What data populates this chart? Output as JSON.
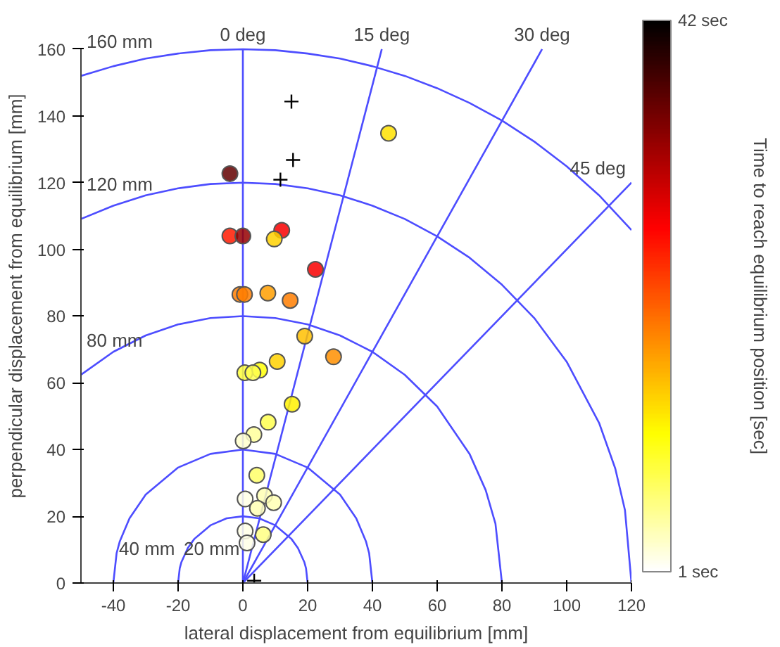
{
  "chart_data": {
    "type": "scatter",
    "xlabel": "lateral displacement from equilibrium [mm]",
    "ylabel": "perpendicular displacement from equilibrium [mm]",
    "clabel": "Time to reach equilibrium position [sec]",
    "xlim": [
      -50,
      120
    ],
    "ylim": [
      0,
      160
    ],
    "xticks": [
      -40,
      -20,
      0,
      20,
      40,
      60,
      80,
      100,
      120
    ],
    "yticks": [
      0,
      20,
      40,
      60,
      80,
      100,
      120,
      140,
      160
    ],
    "grid": false,
    "clim": [
      1,
      42
    ],
    "cticks": [
      {
        "value": 1,
        "label": "1 sec"
      },
      {
        "value": 42,
        "label": "42 sec"
      }
    ],
    "series": [
      {
        "type": "line",
        "name": "160 mm",
        "color": "#4d4dff",
        "x": [
          -50,
          -40,
          -30,
          -20,
          -10,
          0,
          10,
          20,
          30,
          40,
          50,
          60,
          70,
          80,
          90,
          100,
          110,
          120
        ],
        "values": [
          152.0,
          154.9,
          157.2,
          158.7,
          159.7,
          160,
          159.7,
          158.7,
          157.2,
          154.9,
          152.0,
          148.3,
          143.9,
          138.6,
          132.3,
          124.9,
          116.2,
          105.8
        ]
      },
      {
        "type": "line",
        "name": "120 mm",
        "color": "#4d4dff",
        "x": [
          -50,
          -40,
          -30,
          -20,
          -10,
          0,
          10,
          20,
          30,
          40,
          50,
          60,
          70,
          80,
          90,
          100,
          110,
          115,
          118,
          120
        ],
        "values": [
          109.1,
          113.1,
          116.2,
          118.3,
          119.6,
          120,
          119.6,
          118.3,
          116.2,
          113.1,
          109.1,
          103.9,
          97.5,
          89.4,
          79.4,
          66.3,
          48.0,
          34.3,
          21.8,
          0
        ]
      },
      {
        "type": "line",
        "name": "80 mm",
        "color": "#4d4dff",
        "x": [
          -50,
          -40,
          -30,
          -20,
          -10,
          0,
          10,
          20,
          30,
          40,
          50,
          60,
          70,
          75,
          78,
          80
        ],
        "values": [
          62.4,
          69.3,
          74.2,
          77.5,
          79.4,
          80,
          79.4,
          77.5,
          74.2,
          69.3,
          62.4,
          52.9,
          38.7,
          27.8,
          17.8,
          0
        ]
      },
      {
        "type": "line",
        "name": "40 mm",
        "color": "#4d4dff",
        "x": [
          -40,
          -39,
          -38,
          -35,
          -30,
          -20,
          -10,
          0,
          10,
          20,
          30,
          35,
          38,
          39,
          40
        ],
        "values": [
          0,
          8.9,
          12.5,
          19.4,
          26.5,
          34.6,
          38.7,
          40,
          38.7,
          34.6,
          26.5,
          19.4,
          12.5,
          8.9,
          0
        ]
      },
      {
        "type": "line",
        "name": "20 mm",
        "color": "#4d4dff",
        "x": [
          -20,
          -19.5,
          -19,
          -17,
          -15,
          -10,
          -5,
          0,
          5,
          10,
          15,
          17,
          19,
          19.5,
          20
        ],
        "values": [
          0,
          4.4,
          6.2,
          10.5,
          13.2,
          17.3,
          19.4,
          20,
          19.4,
          17.3,
          13.2,
          10.5,
          6.2,
          4.4,
          0
        ]
      },
      {
        "type": "line",
        "name": "0 deg",
        "color": "#4d4dff",
        "x": [
          0,
          0
        ],
        "values": [
          0,
          160
        ]
      },
      {
        "type": "line",
        "name": "15 deg",
        "color": "#4d4dff",
        "x": [
          0,
          42.9
        ],
        "values": [
          0,
          160
        ]
      },
      {
        "type": "line",
        "name": "30 deg",
        "color": "#4d4dff",
        "x": [
          0,
          92.4
        ],
        "values": [
          0,
          160
        ]
      },
      {
        "type": "line",
        "name": "45 deg",
        "color": "#4d4dff",
        "x": [
          0,
          120
        ],
        "values": [
          0,
          120
        ]
      },
      {
        "marker": "cross",
        "color": "#000000",
        "x": [
          15,
          15.5,
          11.6,
          3.5
        ],
        "values": [
          144.3,
          126.8,
          120.9,
          0.7
        ]
      },
      {
        "marker": "circle",
        "x": [
          -4,
          45,
          -4,
          0,
          12,
          9.7,
          22.4,
          -0.9,
          0.5,
          7.7,
          14.6,
          19.1,
          28,
          10.6,
          5.2,
          0.6,
          3.1,
          15.2,
          7.8,
          3.4,
          0.1,
          4.3,
          0.7,
          6.7,
          9.5,
          4.5,
          0.7,
          6.3,
          1.3
        ],
        "values": [
          122.7,
          134.8,
          104,
          104,
          105.7,
          103.1,
          94,
          86.5,
          86.5,
          86.9,
          84.7,
          74,
          67.8,
          66.4,
          63.8,
          63,
          63,
          53.6,
          48.2,
          44.5,
          42.6,
          32.3,
          25.2,
          26.2,
          24.1,
          22.4,
          15.6,
          14.5,
          12
        ],
        "colors": [
          "#630000",
          "#ffe200",
          "#ff1a00",
          "#950000",
          "#f80000",
          "#ffd100",
          "#f80000",
          "#ff7e00",
          "#ff7e00",
          "#ff9f00",
          "#ff7e00",
          "#ffc000",
          "#ff8f00",
          "#ffd100",
          "#ffff06",
          "#ffff38",
          "#ffff50",
          "#fff200",
          "#ffff50",
          "#ffff9b",
          "#ffffcd",
          "#ffff69",
          "#ffffe6",
          "#ffffb4",
          "#ffffb4",
          "#ffffb4",
          "#ffffe6",
          "#ffff82",
          "#ffffe6"
        ]
      }
    ]
  }
}
